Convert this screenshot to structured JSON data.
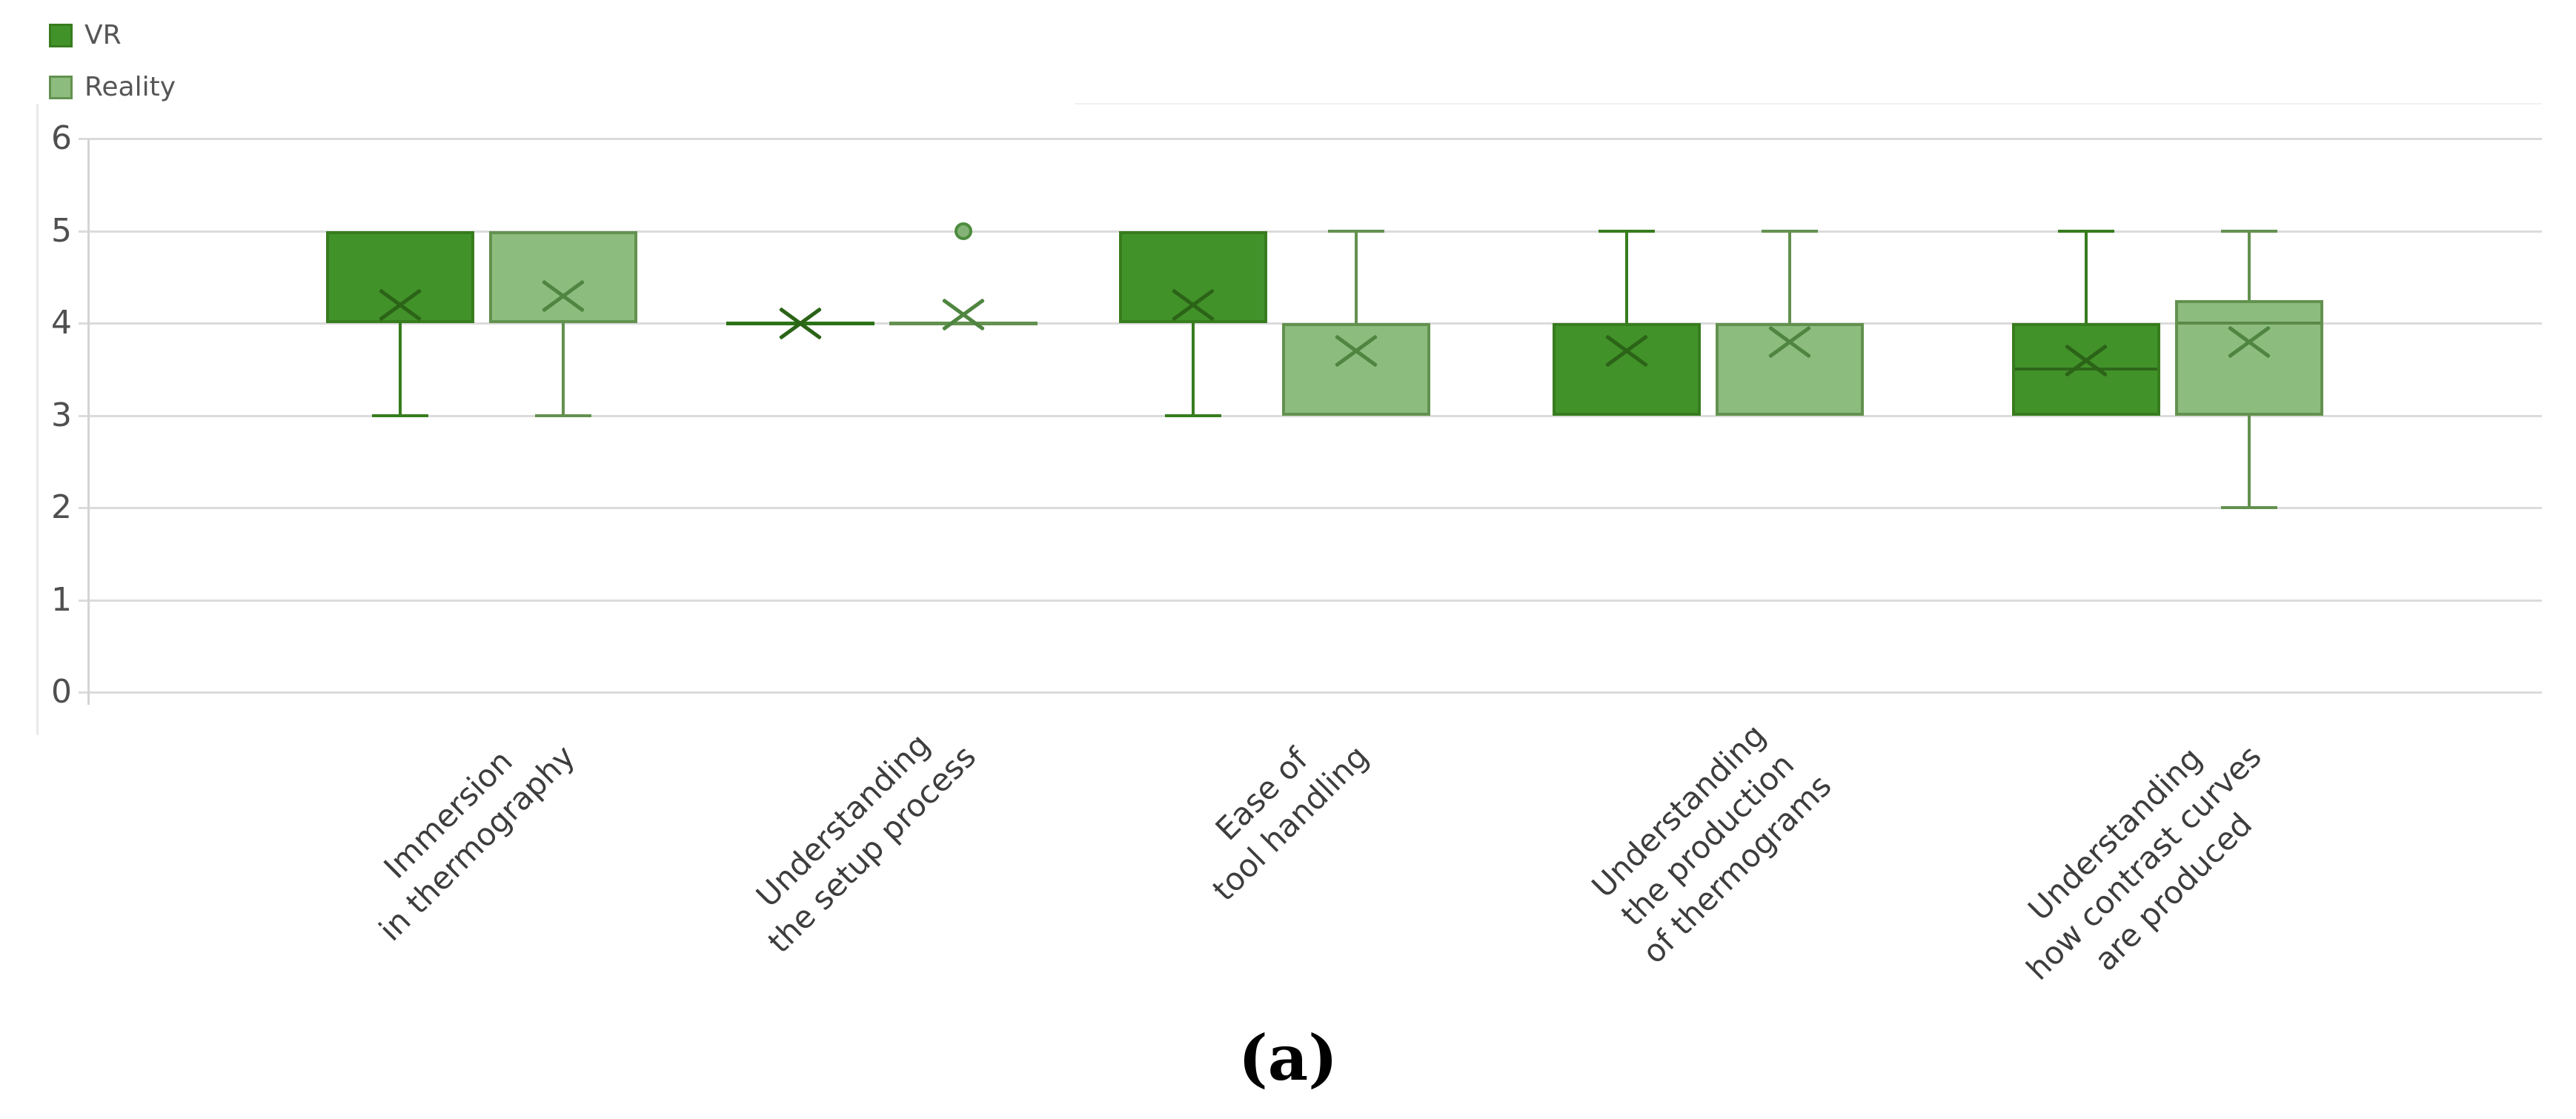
{
  "caption": "(a)",
  "legend": {
    "items": [
      {
        "label": "VR"
      },
      {
        "label": "Reality"
      }
    ]
  },
  "colors": {
    "vr_fill": "#42922a",
    "vr_border": "#377c1e",
    "vr_mean": "#2b6317",
    "vr_flatline": "#2b7217",
    "vr_median": "#2e661a",
    "reality_fill": "#8cbc7e",
    "reality_border": "#63914f",
    "reality_mean": "#4f8541",
    "reality_flatline": "#63914f",
    "reality_median": "#5b8a47",
    "outlier_fill": "#85b377",
    "outlier_border": "#4d8c3f",
    "gridline": "#dbdbdb",
    "axis_text": "#4f4f4f",
    "category_text": "#3d3d3d"
  },
  "chart_data": {
    "type": "boxplot",
    "title": "",
    "xlabel": "",
    "ylabel": "",
    "ylim": [
      0,
      6
    ],
    "yticks": [
      6,
      5,
      4,
      3,
      2,
      1,
      0
    ],
    "grid": true,
    "legend_position": "top-left",
    "categories": [
      "Immersion in thermography",
      "Understanding the setup process",
      "Ease of tool handling",
      "Understanding the production of thermograms",
      "Understanding how contrast curves are produced"
    ],
    "category_label_lines": [
      [
        "Immersion",
        "in thermography"
      ],
      [
        "Understanding",
        "the setup process"
      ],
      [
        "Ease of",
        "tool handling"
      ],
      [
        "Understanding",
        "the production",
        "of thermograms"
      ],
      [
        "Understanding",
        "how contrast curves",
        "are produced"
      ]
    ],
    "series": [
      {
        "name": "VR",
        "boxes": [
          {
            "whisker_low": 3,
            "q1": 4,
            "median": null,
            "q3": 5,
            "whisker_high": 5,
            "mean": 4.2,
            "outliers": []
          },
          {
            "whisker_low": 4,
            "q1": 4,
            "median": 4,
            "q3": 4,
            "whisker_high": 4,
            "mean": 4.0,
            "outliers": []
          },
          {
            "whisker_low": 3,
            "q1": 4,
            "median": null,
            "q3": 5,
            "whisker_high": 5,
            "mean": 4.2,
            "outliers": []
          },
          {
            "whisker_low": 3,
            "q1": 3,
            "median": null,
            "q3": 4,
            "whisker_high": 5,
            "mean": 3.7,
            "outliers": []
          },
          {
            "whisker_low": 3,
            "q1": 3,
            "median": 3.5,
            "q3": 4,
            "whisker_high": 5,
            "mean": 3.6,
            "outliers": []
          }
        ]
      },
      {
        "name": "Reality",
        "boxes": [
          {
            "whisker_low": 3,
            "q1": 4,
            "median": null,
            "q3": 5,
            "whisker_high": 5,
            "mean": 4.3,
            "outliers": []
          },
          {
            "whisker_low": 4,
            "q1": 4,
            "median": 4,
            "q3": 4,
            "whisker_high": 4,
            "mean": 4.1,
            "outliers": [
              5
            ]
          },
          {
            "whisker_low": 3,
            "q1": 3,
            "median": null,
            "q3": 4,
            "whisker_high": 5,
            "mean": 3.7,
            "outliers": []
          },
          {
            "whisker_low": 3,
            "q1": 3,
            "median": null,
            "q3": 4,
            "whisker_high": 5,
            "mean": 3.8,
            "outliers": []
          },
          {
            "whisker_low": 2,
            "q1": 3,
            "median": 4,
            "q3": 4.25,
            "whisker_high": 5,
            "mean": 3.8,
            "outliers": []
          }
        ]
      }
    ]
  }
}
